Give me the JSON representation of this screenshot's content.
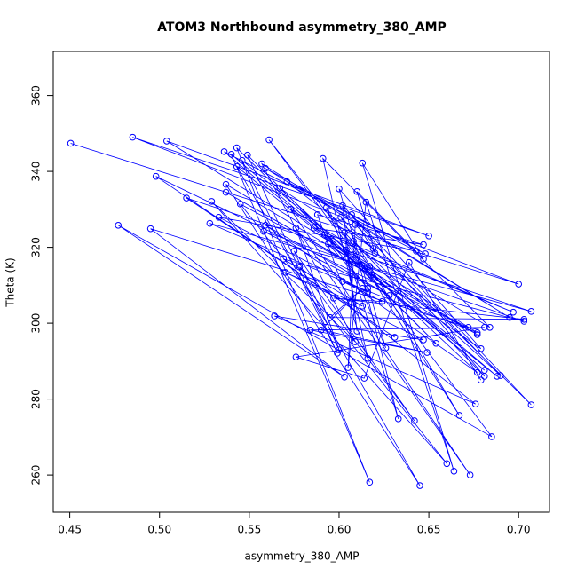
{
  "chart_data": {
    "type": "scatter-line",
    "title": "ATOM3 Northbound asymmetry_380_AMP",
    "x_label": "asymmetry_380_AMP",
    "y_label": "Theta (K)",
    "color": "#0000ff",
    "xlim": [
      0.4408,
      0.7172
    ],
    "ylim": [
      250.2,
      371.6
    ],
    "xticks": [
      0.45,
      {
        "value": 0.5,
        "label": "0.50"
      },
      0.55,
      {
        "value": 0.6,
        "label": "0.60"
      },
      0.65,
      {
        "value": 0.7,
        "label": "0.70"
      }
    ],
    "yticks": [
      260,
      280,
      300,
      320,
      340,
      360
    ],
    "x": [
      0.4505,
      0.7,
      0.485,
      0.65,
      0.504,
      0.617,
      0.561,
      0.685,
      0.477,
      0.603,
      0.495,
      0.672,
      0.498,
      0.631,
      0.515,
      0.707,
      0.528,
      0.616,
      0.533,
      0.643,
      0.536,
      0.681,
      0.54,
      0.617,
      0.543,
      0.654,
      0.549,
      0.599,
      0.546,
      0.688,
      0.543,
      0.645,
      0.537,
      0.677,
      0.537,
      0.618,
      0.545,
      0.66,
      0.529,
      0.609,
      0.557,
      0.695,
      0.559,
      0.648,
      0.571,
      0.619,
      0.567,
      0.677,
      0.559,
      0.628,
      0.558,
      0.703,
      0.569,
      0.613,
      0.57,
      0.647,
      0.564,
      0.676,
      0.578,
      0.642,
      0.575,
      0.6,
      0.576,
      0.673,
      0.573,
      0.684,
      0.591,
      0.616,
      0.588,
      0.647,
      0.586,
      0.697,
      0.592,
      0.616,
      0.594,
      0.679,
      0.6,
      0.626,
      0.593,
      0.667,
      0.601,
      0.707,
      0.602,
      0.61,
      0.603,
      0.681,
      0.607,
      0.62,
      0.61,
      0.647,
      0.613,
      0.664,
      0.615,
      0.605,
      0.609,
      0.69,
      0.608,
      0.633,
      0.604,
      0.677,
      0.602,
      0.624,
      0.597,
      0.703,
      0.595,
      0.613,
      0.59,
      0.649,
      0.584,
      0.681,
      0.576,
      0.614,
      0.639,
      0.679
    ],
    "y": [
      347.4,
      310.3,
      349.0,
      323.0,
      348.0,
      315.0,
      348.3,
      270.1,
      325.8,
      285.8,
      324.9,
      298.9,
      338.7,
      296.3,
      333.0,
      303.1,
      326.3,
      308.2,
      327.9,
      319.0,
      345.2,
      287.6,
      344.5,
      258.1,
      346.2,
      294.7,
      344.3,
      292.1,
      342.9,
      286.0,
      341.3,
      257.2,
      336.6,
      297.0,
      334.5,
      312.7,
      331.4,
      263.0,
      332.1,
      295.1,
      342.0,
      301.5,
      340.8,
      318.3,
      337.3,
      319.7,
      335.6,
      287.0,
      325.8,
      307.3,
      324.2,
      300.5,
      316.9,
      304.5,
      313.4,
      295.6,
      301.9,
      278.7,
      314.8,
      274.3,
      319.0,
      293.0,
      325.1,
      260.0,
      330.0,
      298.9,
      343.4,
      290.7,
      328.6,
      320.7,
      325.1,
      302.9,
      323.2,
      309.2,
      320.9,
      293.3,
      335.4,
      293.5,
      330.5,
      275.7,
      327.9,
      278.5,
      331.0,
      297.9,
      323.9,
      286.0,
      328.6,
      318.5,
      334.7,
      316.9,
      342.2,
      261.0,
      331.9,
      288.3,
      326.0,
      286.2,
      321.6,
      274.8,
      319.3,
      297.5,
      311.0,
      305.7,
      306.6,
      301.0,
      301.5,
      309.2,
      298.2,
      292.3,
      298.2,
      298.9,
      291.1,
      285.5,
      316.0,
      285.0
    ]
  }
}
